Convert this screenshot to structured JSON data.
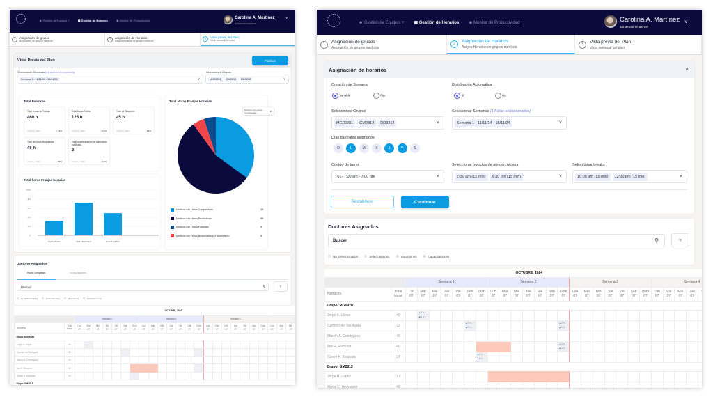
{
  "header": {
    "nav": [
      "Gestión de Equipos",
      "Gestión de Horarios",
      "Monitor de Productividad"
    ],
    "user_name": "Carolina A. Martínez",
    "user_role": "ADMINISTRADOR"
  },
  "steps": [
    {
      "num": "1",
      "title": "Asignación de grupos",
      "subtitle": "Asignación de grupos médicos"
    },
    {
      "num": "2",
      "title": "Asignación de Horarios",
      "subtitle": "Asigna Horarios de grupos médicos"
    },
    {
      "num": "3",
      "title": "Vista previa del Plan",
      "subtitle": "Vista semanal del plan"
    }
  ],
  "preview": {
    "title": "Vista Previa del Plan",
    "publish": "Publicar",
    "weeks_label": "Seleccionar Semanas",
    "weeks_hint": "(14 días seleccionados)",
    "week_value": "Semana 1 - 11/11/24 - 15/11/24",
    "groups_label": "Selecciones Grupos",
    "groups": [
      "MG09281",
      "GM2812",
      "DD3212"
    ],
    "balances_title": "Total Balances",
    "tiles": [
      {
        "label": "Total Horas de Trabajo",
        "value": "460 h",
        "period": "Octubre, 2024",
        "change": "15%"
      },
      {
        "label": "Total Horas Extras",
        "value": "125 h",
        "period": "Octubre, 2024",
        "change": "10%"
      },
      {
        "label": "Total de Bloqueos",
        "value": "45 h",
        "period": "Octubre, 2024",
        "change": "15%"
      },
      {
        "label": "Total de horas bloqueadas",
        "value": "46 h",
        "period": "Octubre, 2024",
        "change": "25%"
      },
      {
        "label": "Total modificaciones en calendario publicado",
        "value": "3",
        "period": "Octubre, 2024",
        "change": "10%"
      }
    ],
    "tabs": [
      "Horas completas",
      "Horas faltantes"
    ]
  },
  "chart_data": [
    {
      "type": "bar",
      "title": "Total horas Franjas horarias",
      "categories": [
        "MATUTINO",
        "VESPERTINO",
        "NOCTURNO"
      ],
      "values": [
        3.2,
        7.2,
        4.9
      ],
      "ylim": [
        0,
        10
      ],
      "yticks": [
        "0",
        "2%",
        "4%",
        "6%",
        "8%",
        "10%"
      ],
      "grid": true,
      "color": "#0a9be0"
    },
    {
      "type": "pie",
      "title": "Total Horas Franjas Horarias",
      "slices": [
        {
          "label": "Médicos con Horas Completadas",
          "value": 35,
          "color": "#0a9be0"
        },
        {
          "label": "Médicos con Horas Productivas",
          "value": 55,
          "color": "#0b0a3c"
        },
        {
          "label": "Médicos con Horas Faltantes",
          "value": 5,
          "color": "#0b4c8c"
        },
        {
          "label": "Médicos con Horas Bloqueadas por Ausentismo",
          "value": 5,
          "color": "#ef4449"
        }
      ],
      "draw_order": [
        0,
        1,
        3,
        2
      ],
      "tooltip": {
        "label": "Médicos con Horas Completadas",
        "value": "35"
      },
      "legend": "bottom"
    }
  ],
  "form": {
    "title": "Asignación de horarios",
    "creation_label": "Creación de Semana",
    "creation_options": [
      "Variable",
      "Fijo"
    ],
    "creation_selected": 0,
    "auto_label": "Distribución Automática",
    "auto_options": [
      "Sí",
      "No"
    ],
    "auto_selected": 0,
    "groups_label": "Selecciones Grupos",
    "groups": [
      "MG09281",
      "GM2812",
      "DD3212"
    ],
    "weeks_label": "Seleccionar Semanas",
    "weeks_hint": "(14 días seleccionados)",
    "week_value": "Semana 1 - 11/11/24 - 15/11/24",
    "days_label": "Días laborales asignados",
    "days": [
      {
        "d": "D",
        "on": false
      },
      {
        "d": "L",
        "on": true
      },
      {
        "d": "M",
        "on": false
      },
      {
        "d": "X",
        "on": false
      },
      {
        "d": "J",
        "on": true
      },
      {
        "d": "V",
        "on": true
      },
      {
        "d": "S",
        "on": false
      }
    ],
    "shift_label": "Código de turno",
    "shift_value": "T01- 7:00 am - 7:00 pm",
    "meal_label": "Seleccionar horarios de almuerzo/cena",
    "meals": [
      "7:30 am  (15 min)",
      "6:30 pm (15 min)"
    ],
    "breaks_label": "Seleccionar breaks",
    "breaks": [
      "10:00 am (15 min)",
      "12:00 pm (15 min)"
    ],
    "reset": "Restablecer",
    "continue": "Continuar"
  },
  "doctors": {
    "title": "Doctores Asignados",
    "search_placeholder": "Buscar",
    "legend": [
      {
        "label": "No Seleccionados",
        "color": "#ffffff"
      },
      {
        "label": "Seleccionados",
        "color": "#eef0f6"
      },
      {
        "label": "Vacaciones",
        "color": "#fdc9bb"
      },
      {
        "label": "Capacitaciones",
        "color": "#b9c6f7"
      }
    ]
  },
  "schedule": {
    "month": "OCTUBRE, 2024",
    "names_header": "Nombres",
    "total_header": "Total horas",
    "weeks": [
      "Semana 1",
      "Semana 2",
      "Semana 3",
      "Semana 4"
    ],
    "day_names": [
      "Lun",
      "Mar",
      "Mié",
      "Jue",
      "Vie",
      "Sáb",
      "Dom"
    ],
    "day_date": "07",
    "badge": [
      "2 h...",
      "6 h..."
    ],
    "rows": [
      {
        "group": "Grupo: MG09281"
      },
      {
        "name": "Jorge A. López",
        "hours": "40",
        "cap": [
          1
        ],
        "vac": []
      },
      {
        "name": "Carmen del Sol Ayala",
        "hours": "32",
        "cap": [
          5,
          13
        ],
        "vac": []
      },
      {
        "name": "Marvin A. Domínguez",
        "hours": "40",
        "cap": [],
        "vac": []
      },
      {
        "name": "Ilsa R. Ramírez",
        "hours": "40",
        "cap": [
          13
        ],
        "vac": [
          6,
          7,
          8
        ]
      },
      {
        "name": "Giesel H. Alvarado",
        "hours": "24",
        "cap": [
          6
        ],
        "vac": []
      },
      {
        "group": "Grupo: GM2812"
      },
      {
        "name": "Jorge R. López",
        "hours": "12",
        "cap": [],
        "vac": [
          7,
          8,
          9,
          10,
          11,
          12,
          13
        ]
      },
      {
        "name": "María C. Henríquez",
        "hours": "40",
        "cap": [],
        "vac": []
      }
    ]
  }
}
